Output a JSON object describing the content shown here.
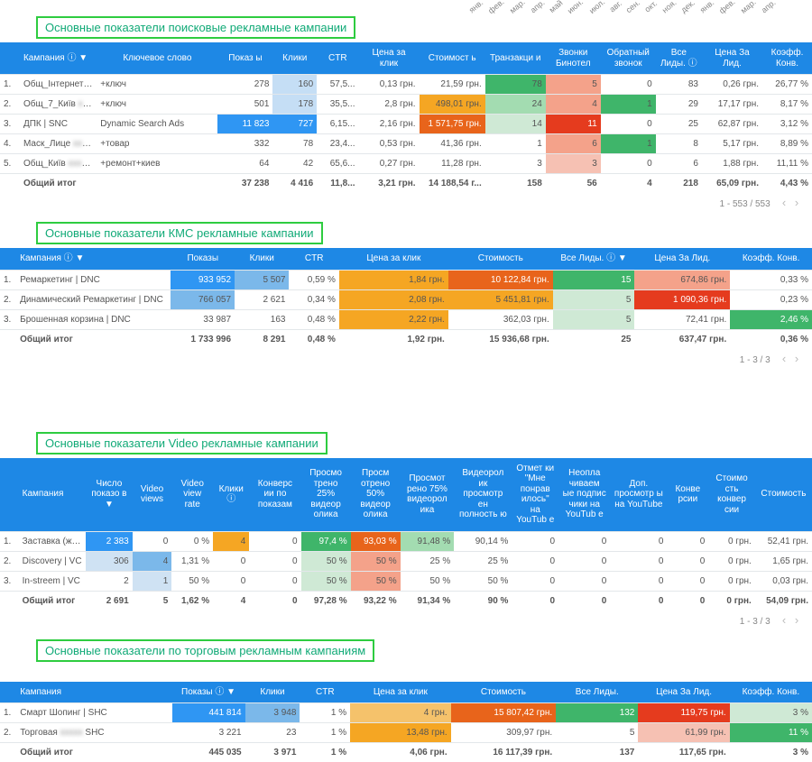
{
  "months": [
    "янв.",
    "фев.",
    "мар.",
    "апр.",
    "май",
    "июн.",
    "июл.",
    "авг.",
    "сен.",
    "окт.",
    "ноя.",
    "дек.",
    "янв.",
    "фев.",
    "мар.",
    "апр."
  ],
  "t1": {
    "title": "Основные показатели поисковые рекламные кампании",
    "headers": [
      "Кампания ⓘ ▼",
      "Ключевое слово",
      "Показ ы",
      "Клики",
      "CTR",
      "Цена за клик",
      "Стоимост ь",
      "Транзакци и",
      "Звонки Бинотел",
      "Обратный звонок",
      "Все Лиды. ⓘ",
      "Цена За Лид.",
      "Коэфф. Конв."
    ],
    "widths": [
      70,
      110,
      50,
      40,
      38,
      55,
      60,
      55,
      50,
      50,
      42,
      55,
      45
    ],
    "rows": [
      {
        "i": "1.",
        "c": [
          {
            "v": "Общ_Інтернет | SNC",
            "b": 1
          },
          {
            "v": "+ключ"
          },
          {
            "v": "278"
          },
          {
            "v": "160",
            "bg": "#c5def5"
          },
          {
            "v": "57,5..."
          },
          {
            "v": "0,13 грн."
          },
          {
            "v": "21,59 грн."
          },
          {
            "v": "78",
            "bg": "#3fb56a"
          },
          {
            "v": "5",
            "bg": "#f4a28a"
          },
          {
            "v": "0"
          },
          {
            "v": "83"
          },
          {
            "v": "0,26 грн."
          },
          {
            "v": "26,77 %"
          }
        ]
      },
      {
        "i": "2.",
        "c": [
          {
            "v": "Общ_7_Київ | SNC",
            "b": 1
          },
          {
            "v": "+ключ"
          },
          {
            "v": "501"
          },
          {
            "v": "178",
            "bg": "#c5def5"
          },
          {
            "v": "35,5..."
          },
          {
            "v": "2,8 грн."
          },
          {
            "v": "498,01 грн.",
            "bg": "#f5a623"
          },
          {
            "v": "24",
            "bg": "#a3dcb1"
          },
          {
            "v": "4",
            "bg": "#f4a28a"
          },
          {
            "v": "1",
            "bg": "#3fb56a"
          },
          {
            "v": "29"
          },
          {
            "v": "17,17 грн."
          },
          {
            "v": "8,17 %"
          }
        ]
      },
      {
        "i": "3.",
        "c": [
          {
            "v": "ДПК | SNC"
          },
          {
            "v": "Dynamic Search Ads"
          },
          {
            "v": "11 823",
            "bg": "#2f96f3",
            "fg": "#fff"
          },
          {
            "v": "727",
            "bg": "#2f96f3",
            "fg": "#fff"
          },
          {
            "v": "6,15..."
          },
          {
            "v": "2,16 грн."
          },
          {
            "v": "1 571,75 грн.",
            "bg": "#e8641b",
            "fg": "#fff"
          },
          {
            "v": "14",
            "bg": "#cfe9d5"
          },
          {
            "v": "11",
            "bg": "#e53b1e",
            "fg": "#fff"
          },
          {
            "v": "0"
          },
          {
            "v": "25"
          },
          {
            "v": "62,87 грн."
          },
          {
            "v": "3,12 %"
          }
        ]
      },
      {
        "i": "4.",
        "c": [
          {
            "v": "Маск_Лице | Маска | SNC",
            "b": 1
          },
          {
            "v": "+товар"
          },
          {
            "v": "332"
          },
          {
            "v": "78"
          },
          {
            "v": "23,4..."
          },
          {
            "v": "0,53 грн."
          },
          {
            "v": "41,36 грн."
          },
          {
            "v": "1"
          },
          {
            "v": "6",
            "bg": "#f4a28a"
          },
          {
            "v": "1",
            "bg": "#3fb56a"
          },
          {
            "v": "8"
          },
          {
            "v": "5,17 грн."
          },
          {
            "v": "8,89 %"
          }
        ]
      },
      {
        "i": "5.",
        "c": [
          {
            "v": "Общ_Київ | SNC",
            "b": 1
          },
          {
            "v": "+ремонт+киев"
          },
          {
            "v": "64"
          },
          {
            "v": "42"
          },
          {
            "v": "65,6..."
          },
          {
            "v": "0,27 грн."
          },
          {
            "v": "11,28 грн."
          },
          {
            "v": "3"
          },
          {
            "v": "3",
            "bg": "#f6c1b3"
          },
          {
            "v": "0"
          },
          {
            "v": "6"
          },
          {
            "v": "1,88 грн."
          },
          {
            "v": "11,11 %"
          }
        ]
      }
    ],
    "total": [
      "Общий итог",
      "",
      "37 238",
      "4 416",
      "11,8...",
      "3,21 грн.",
      "14 188,54 г...",
      "158",
      "56",
      "4",
      "218",
      "65,09 грн.",
      "4,43 %"
    ],
    "pager": "1 - 553 / 553"
  },
  "t2": {
    "title": "Основные показатели КМС рекламные кампании",
    "headers": [
      "Кампания ⓘ ▼",
      "Показы",
      "Клики",
      "CTR",
      "Цена за клик",
      "Стоимость",
      "Все Лиды. ⓘ ▼",
      "Цена За Лид.",
      "Коэфф. Конв."
    ],
    "widths": [
      170,
      70,
      60,
      55,
      120,
      115,
      90,
      105,
      90
    ],
    "rows": [
      {
        "i": "1.",
        "c": [
          {
            "v": "Ремаркетинг | DNC"
          },
          {
            "v": "933 952",
            "bg": "#2f96f3",
            "fg": "#fff"
          },
          {
            "v": "5 507",
            "bg": "#7bb8ea"
          },
          {
            "v": "0,59 %"
          },
          {
            "v": "1,84 грн.",
            "bg": "#f5a623"
          },
          {
            "v": "10 122,84 грн.",
            "bg": "#e8641b",
            "fg": "#fff"
          },
          {
            "v": "15",
            "bg": "#3fb56a",
            "fg": "#fff"
          },
          {
            "v": "674,86 грн.",
            "bg": "#f4a28a"
          },
          {
            "v": "0,33 %"
          }
        ]
      },
      {
        "i": "2.",
        "c": [
          {
            "v": "Динамический Ремаркетинг | DNC"
          },
          {
            "v": "766 057",
            "bg": "#7bb8ea"
          },
          {
            "v": "2 621"
          },
          {
            "v": "0,34 %"
          },
          {
            "v": "2,08 грн.",
            "bg": "#f5a623"
          },
          {
            "v": "5 451,81 грн.",
            "bg": "#f5a623"
          },
          {
            "v": "5",
            "bg": "#cfe9d5"
          },
          {
            "v": "1 090,36 грн.",
            "bg": "#e53b1e",
            "fg": "#fff"
          },
          {
            "v": "0,23 %"
          }
        ]
      },
      {
        "i": "3.",
        "c": [
          {
            "v": "Брошенная корзина | DNC"
          },
          {
            "v": "33 987"
          },
          {
            "v": "163"
          },
          {
            "v": "0,48 %"
          },
          {
            "v": "2,22 грн.",
            "bg": "#f5a623"
          },
          {
            "v": "362,03 грн."
          },
          {
            "v": "5",
            "bg": "#cfe9d5"
          },
          {
            "v": "72,41 грн."
          },
          {
            "v": "2,46 %",
            "bg": "#3fb56a",
            "fg": "#fff"
          }
        ]
      }
    ],
    "total": [
      "Общий итог",
      "1 733 996",
      "8 291",
      "0,48 %",
      "1,92 грн.",
      "15 936,68 грн.",
      "25",
      "637,47 грн.",
      "0,36 %"
    ],
    "pager": "1 - 3 / 3"
  },
  "t3": {
    "title": "Основные показатели Video рекламные кампании",
    "headers": [
      "Кампания",
      "Число показо в ▼",
      "Video views",
      "Video view rate",
      "Клики ⓘ",
      "Конверс ии по показам",
      "Просмо трено 25% видеор олика",
      "Просм отрено 50% видеор олика",
      "Просмот рено 75% видеорол ика",
      "Видеорол ик просмотр ен полность ю",
      "Отмет ки \"Мне понрав илось\" на YouTub e",
      "Неопла чиваем ые подпис чики на YouTub e",
      "Доп. просмотр ы на YouTube",
      "Конве рсии",
      "Стоимо сть конвер сии",
      "Стоимость"
    ],
    "widths": [
      65,
      45,
      38,
      40,
      35,
      50,
      48,
      48,
      52,
      56,
      45,
      50,
      55,
      40,
      45,
      55
    ],
    "rows": [
      {
        "i": "1.",
        "c": [
          {
            "v": "Заставка (женщины) | VC"
          },
          {
            "v": "2 383",
            "bg": "#2f96f3",
            "fg": "#fff"
          },
          {
            "v": "0"
          },
          {
            "v": "0 %"
          },
          {
            "v": "4",
            "bg": "#f5a623"
          },
          {
            "v": "0"
          },
          {
            "v": "97,4 %",
            "bg": "#3fb56a",
            "fg": "#fff"
          },
          {
            "v": "93,03 %",
            "bg": "#e8641b",
            "fg": "#fff"
          },
          {
            "v": "91,48 %",
            "bg": "#a3dcb1"
          },
          {
            "v": "90,14 %"
          },
          {
            "v": "0"
          },
          {
            "v": "0"
          },
          {
            "v": "0"
          },
          {
            "v": "0"
          },
          {
            "v": "0 грн."
          },
          {
            "v": "52,41 грн."
          }
        ]
      },
      {
        "i": "2.",
        "c": [
          {
            "v": "Discovery | VC"
          },
          {
            "v": "306",
            "bg": "#cfe2f3"
          },
          {
            "v": "4",
            "bg": "#7bb8ea"
          },
          {
            "v": "1,31 %"
          },
          {
            "v": "0"
          },
          {
            "v": "0"
          },
          {
            "v": "50 %",
            "bg": "#cfe9d5"
          },
          {
            "v": "50 %",
            "bg": "#f4a28a"
          },
          {
            "v": "25 %"
          },
          {
            "v": "25 %"
          },
          {
            "v": "0"
          },
          {
            "v": "0"
          },
          {
            "v": "0"
          },
          {
            "v": "0"
          },
          {
            "v": "0 грн."
          },
          {
            "v": "1,65 грн."
          }
        ]
      },
      {
        "i": "3.",
        "c": [
          {
            "v": "In-streem | VC"
          },
          {
            "v": "2"
          },
          {
            "v": "1",
            "bg": "#cfe2f3"
          },
          {
            "v": "50 %"
          },
          {
            "v": "0"
          },
          {
            "v": "0"
          },
          {
            "v": "50 %",
            "bg": "#cfe9d5"
          },
          {
            "v": "50 %",
            "bg": "#f4a28a"
          },
          {
            "v": "50 %"
          },
          {
            "v": "50 %"
          },
          {
            "v": "0"
          },
          {
            "v": "0"
          },
          {
            "v": "0"
          },
          {
            "v": "0"
          },
          {
            "v": "0 грн."
          },
          {
            "v": "0,03 грн."
          }
        ]
      }
    ],
    "total": [
      "Общий итог",
      "2 691",
      "5",
      "1,62 %",
      "4",
      "0",
      "97,28 %",
      "93,22 %",
      "91,34 %",
      "90 %",
      "0",
      "0",
      "0",
      "0",
      "0 грн.",
      "54,09 грн."
    ],
    "pager": "1 - 3 / 3"
  },
  "t4": {
    "title": "Основные показатели по торговым рекламным кампаниям",
    "headers": [
      "Кампания",
      "Показы ⓘ ▼",
      "Клики",
      "CTR",
      "Цена за клик",
      "Стоимость",
      "Все Лиды.",
      "Цена За Лид.",
      "Коэфф. Конв."
    ],
    "widths": [
      170,
      80,
      60,
      55,
      110,
      115,
      90,
      100,
      90
    ],
    "rows": [
      {
        "i": "1.",
        "c": [
          {
            "v": "Смарт Шопинг | SHC"
          },
          {
            "v": "441 814",
            "bg": "#2f96f3",
            "fg": "#fff"
          },
          {
            "v": "3 948",
            "bg": "#7bb8ea"
          },
          {
            "v": "1 %"
          },
          {
            "v": "4 грн.",
            "bg": "#f5c26b"
          },
          {
            "v": "15 807,42 грн.",
            "bg": "#e8641b",
            "fg": "#fff"
          },
          {
            "v": "132",
            "bg": "#3fb56a",
            "fg": "#fff"
          },
          {
            "v": "119,75 грн.",
            "bg": "#e53b1e",
            "fg": "#fff"
          },
          {
            "v": "3 %",
            "bg": "#cfe9d5"
          }
        ]
      },
      {
        "i": "2.",
        "c": [
          {
            "v": "Торговая товар | SHC",
            "b": 1
          },
          {
            "v": "3 221"
          },
          {
            "v": "23"
          },
          {
            "v": "1 %"
          },
          {
            "v": "13,48 грн.",
            "bg": "#f5a623"
          },
          {
            "v": "309,97 грн."
          },
          {
            "v": "5"
          },
          {
            "v": "61,99 грн.",
            "bg": "#f6c1b3"
          },
          {
            "v": "11 %",
            "bg": "#3fb56a",
            "fg": "#fff"
          }
        ]
      }
    ],
    "total": [
      "Общий итог",
      "445 035",
      "3 971",
      "1 %",
      "4,06 грн.",
      "16 117,39 грн.",
      "137",
      "117,65 грн.",
      "3 %"
    ]
  }
}
